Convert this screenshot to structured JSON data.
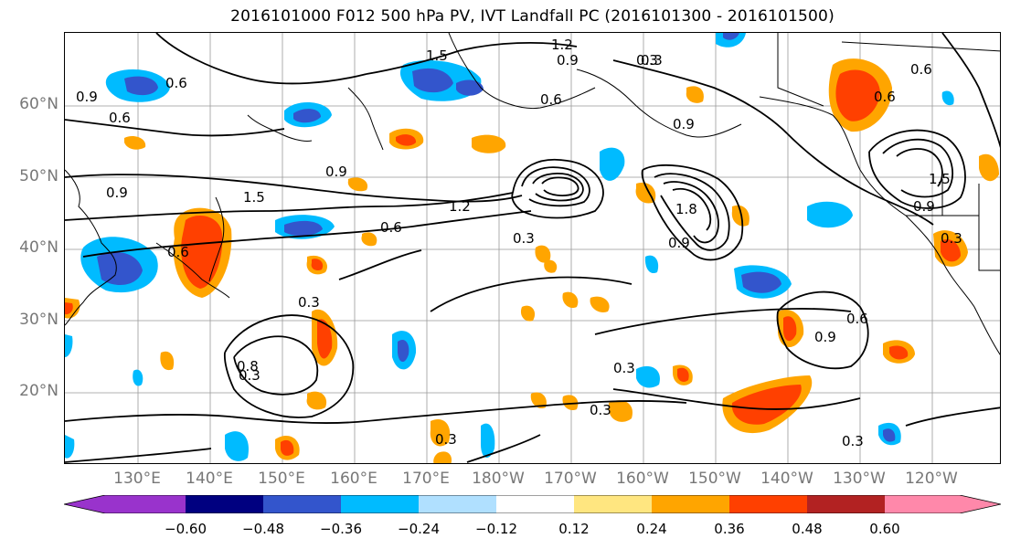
{
  "title": "2016101000 F012 500 hPa PV, IVT Landfall PC (2016101300 - 2016101500)",
  "lat_labels": [
    "60°N",
    "50°N",
    "40°N",
    "30°N",
    "20°N"
  ],
  "lon_labels": [
    "130°E",
    "140°E",
    "150°E",
    "160°E",
    "170°E",
    "180°W",
    "170°W",
    "160°W",
    "150°W",
    "140°W",
    "130°W",
    "120°W"
  ],
  "colorbar": {
    "colors": [
      "#9933cc",
      "#000080",
      "#3355cc",
      "#00bbff",
      "#b0e0ff",
      "#ffffff",
      "#ffe680",
      "#ffa500",
      "#ff4000",
      "#b22222",
      "#ff88aa"
    ],
    "tick_labels": [
      "−0.60",
      "−0.48",
      "−0.36",
      "−0.24",
      "−0.12",
      "0.12",
      "0.24",
      "0.36",
      "0.48",
      "0.60"
    ]
  },
  "contour_labels": [
    "1.5",
    "1.2",
    "0.9",
    "0.3",
    "0.6",
    "0.6",
    "0.9",
    "0.6",
    "0.9",
    "0.9",
    "1.5",
    "1.2",
    "0.6",
    "0.3",
    "0.6",
    "0.3",
    "1.8",
    "0.9",
    "0.3",
    "0.9",
    "0.6",
    "0.3",
    "0.3",
    "0.8",
    "0.3",
    "0.3",
    "0.3",
    "0.9",
    "0.6",
    "0.9",
    "0.6",
    "0.3",
    "1.5"
  ]
}
